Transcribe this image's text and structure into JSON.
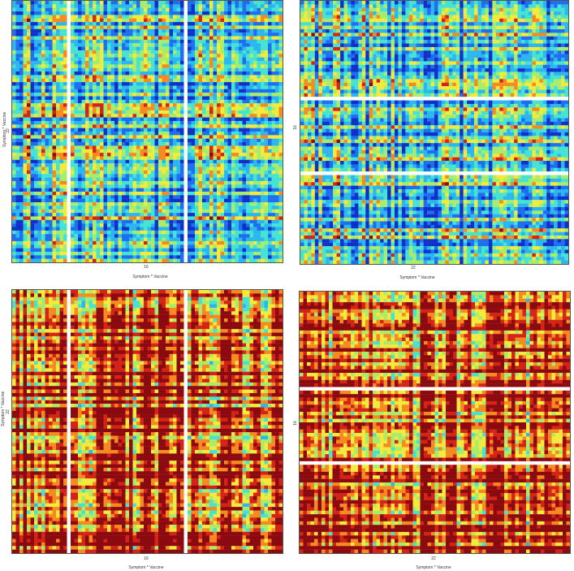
{
  "chart_data": [
    {
      "type": "heatmap",
      "xlabel": "Symptom * Vaccine",
      "ylabel": "Symptom * Vaccine",
      "xtick": "16",
      "ytick": "22",
      "grid": false,
      "legend": "none",
      "rows": 74,
      "cols": 74,
      "mean_level": 0.42,
      "white_rows": [],
      "white_cols": [
        15,
        47
      ],
      "seed": 11,
      "colors": [
        "#1030c8",
        "#1e6ff0",
        "#2bb6f0",
        "#46e2d2",
        "#a8ec6c",
        "#f2ea3c",
        "#f48a20",
        "#d42418",
        "#8a0a10"
      ]
    },
    {
      "type": "heatmap",
      "xlabel": "Symptom * Vaccine",
      "ylabel": "",
      "xtick": "22",
      "ytick": "16",
      "grid": false,
      "legend": "none",
      "rows": 74,
      "cols": 74,
      "mean_level": 0.38,
      "white_rows": [
        27,
        48
      ],
      "white_cols": [],
      "seed": 23,
      "colors": [
        "#1030c8",
        "#1e6ff0",
        "#2bb6f0",
        "#46e2d2",
        "#a8ec6c",
        "#f2ea3c",
        "#f48a20",
        "#d42418",
        "#8a0a10"
      ]
    },
    {
      "type": "heatmap",
      "xlabel": "Symptom * Vaccine",
      "ylabel": "Symptom * Vaccine",
      "xtick": "16",
      "ytick": "22",
      "grid": false,
      "legend": "none",
      "rows": 74,
      "cols": 74,
      "mean_level": 0.82,
      "white_rows": [],
      "white_cols": [
        15,
        47
      ],
      "seed": 37,
      "colors": [
        "#1030c8",
        "#1e6ff0",
        "#2bb6f0",
        "#46e2d2",
        "#a8ec6c",
        "#f2ea3c",
        "#f48a20",
        "#d42418",
        "#8a0a10"
      ]
    },
    {
      "type": "heatmap",
      "xlabel": "Symptom * Vaccine",
      "ylabel": "",
      "xtick": "22",
      "ytick": "16",
      "grid": false,
      "legend": "none",
      "rows": 74,
      "cols": 74,
      "mean_level": 0.84,
      "white_rows": [
        27,
        48
      ],
      "white_cols": [],
      "seed": 53,
      "colors": [
        "#1030c8",
        "#1e6ff0",
        "#2bb6f0",
        "#46e2d2",
        "#a8ec6c",
        "#f2ea3c",
        "#f48a20",
        "#d42418",
        "#8a0a10"
      ]
    }
  ]
}
